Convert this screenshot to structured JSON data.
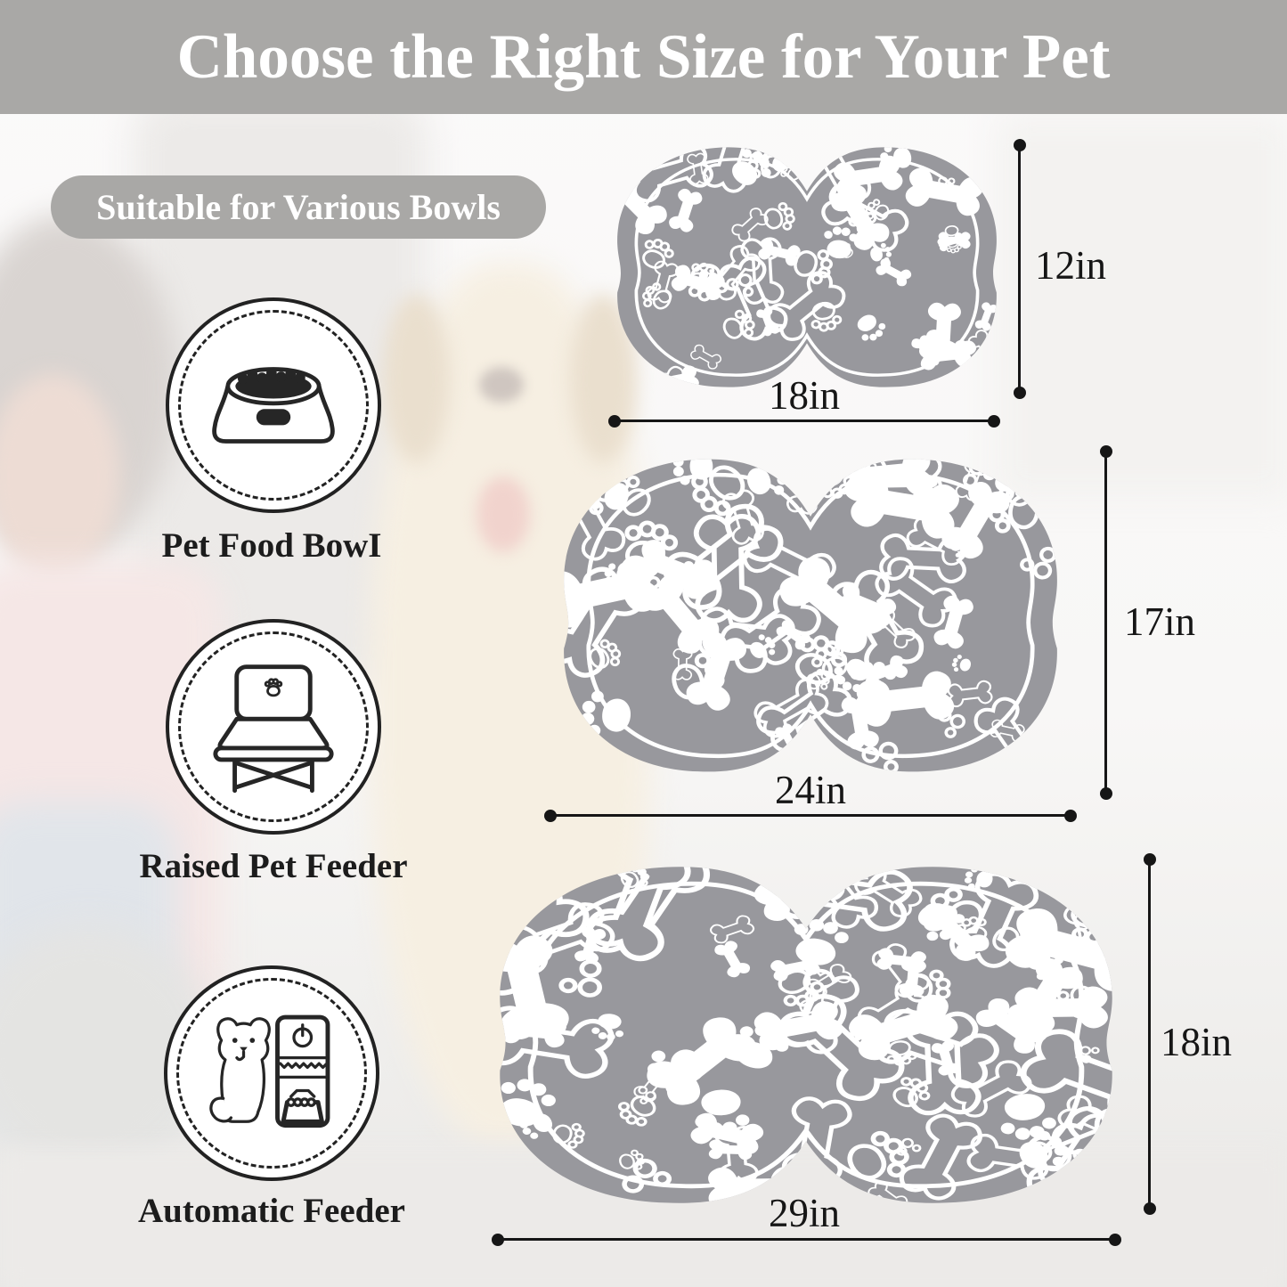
{
  "title": {
    "text": "Choose the Right Size for Your Pet"
  },
  "badge": {
    "text": "Suitable for Various Bowls"
  },
  "compatible_items": [
    {
      "label": "Pet Food BowI",
      "icon": "pet-food-bowl-icon"
    },
    {
      "label": "Raised Pet Feeder",
      "icon": "raised-pet-feeder-icon"
    },
    {
      "label": "Automatic Feeder",
      "icon": "automatic-feeder-icon"
    }
  ],
  "sizes": [
    {
      "id": "small",
      "width_in": "18in",
      "height_in": "12in"
    },
    {
      "id": "medium",
      "width_in": "24in",
      "height_in": "17in"
    },
    {
      "id": "large",
      "width_in": "29in",
      "height_in": "18in"
    }
  ],
  "colors": {
    "banner_bg": "#a9a8a6",
    "badge_bg": "#a9a8a6",
    "mat_gray": "#98989d",
    "pattern_white": "#ffffff",
    "dimension_black": "#161616",
    "title_text": "#ffffff",
    "label_text": "#1c1c1c"
  }
}
